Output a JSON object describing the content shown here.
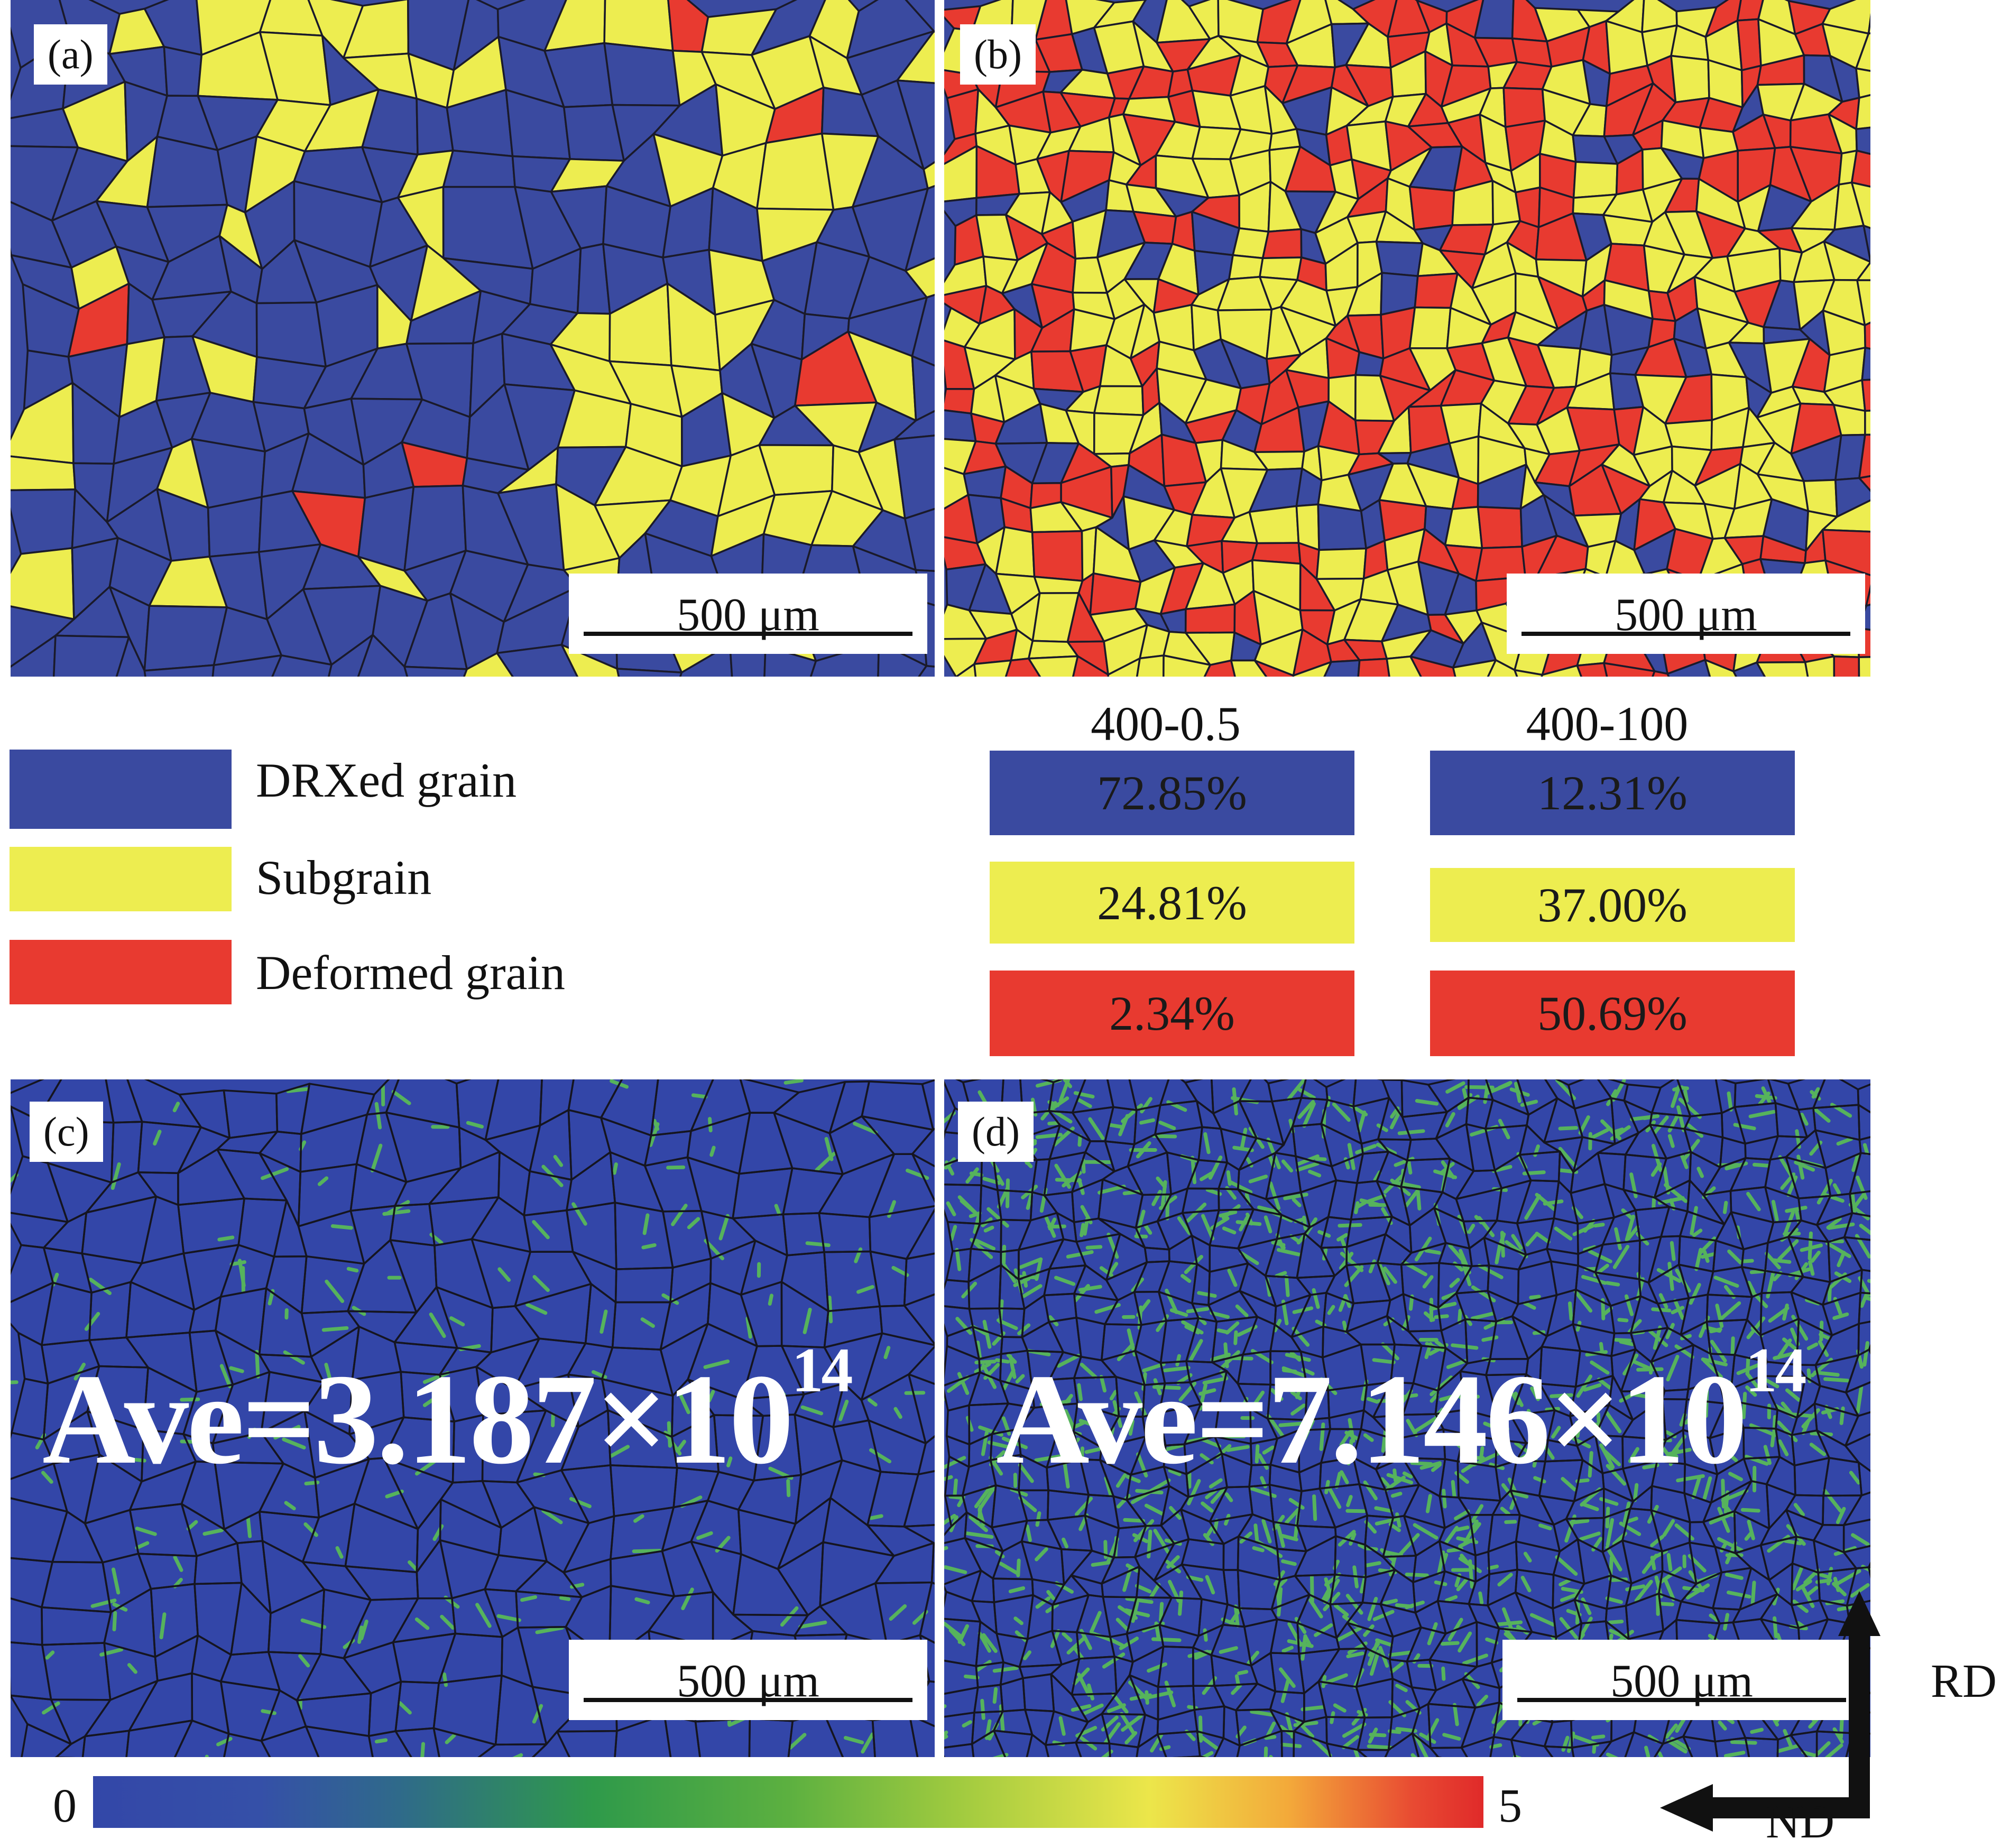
{
  "panels": {
    "a": {
      "tag": "(a)",
      "scale": "500 μm"
    },
    "b": {
      "tag": "(b)",
      "scale": "500 μm"
    },
    "c": {
      "tag": "(c)",
      "scale": "500 μm",
      "ave_main": "Ave=3.187×10",
      "ave_exp": "14"
    },
    "d": {
      "tag": "(d)",
      "scale": "500 μm",
      "ave_main": "Ave=7.146×10",
      "ave_exp": "14"
    }
  },
  "legend": [
    {
      "label": "DRXed grain",
      "color": "#3a4aa0"
    },
    {
      "label": "Subgrain",
      "color": "#eded50"
    },
    {
      "label": "Deformed grain",
      "color": "#e83a30"
    }
  ],
  "fractions": {
    "columns": [
      "400-0.5",
      "400-100"
    ],
    "rows": [
      {
        "color": "#3a4aa0",
        "values": [
          "72.85%",
          "12.31%"
        ]
      },
      {
        "color": "#eded50",
        "values": [
          "24.81%",
          "37.00%"
        ]
      },
      {
        "color": "#e83a30",
        "values": [
          "2.34%",
          "50.69%"
        ]
      }
    ]
  },
  "colorbar": {
    "min": "0",
    "max": "5"
  },
  "axes": {
    "vertical": "RD",
    "horizontal": "ND"
  },
  "colors": {
    "drx": "#3a4aa0",
    "sub": "#eded50",
    "def": "#e83a30",
    "kam_bg": "#3346a8",
    "kam_hi": "#5fcf4a"
  }
}
